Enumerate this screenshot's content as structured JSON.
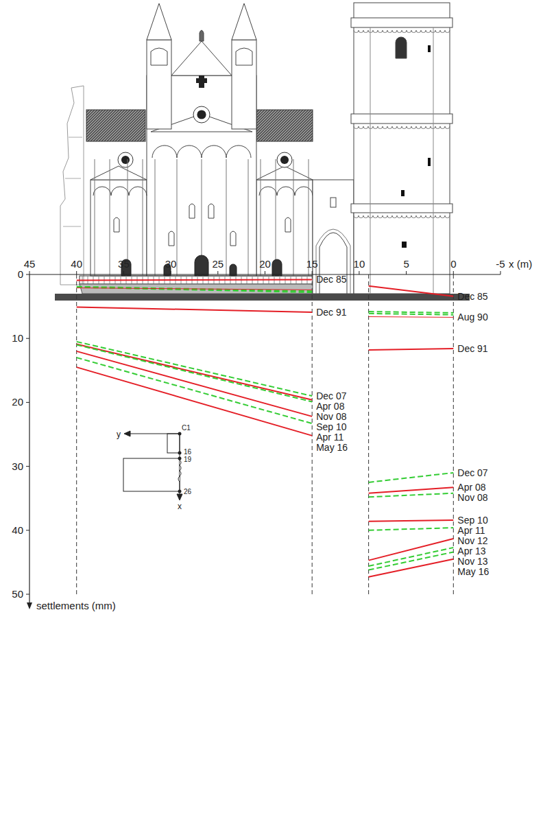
{
  "chart_data": [
    {
      "type": "line",
      "x_label": "x (m)",
      "y_label": "settlements (mm)",
      "xlim": [
        45,
        -5
      ],
      "ylim": [
        0,
        50
      ],
      "xticks": [
        45,
        40,
        35,
        30,
        25,
        20,
        15,
        10,
        5,
        0,
        -5
      ],
      "yticks": [
        0,
        10,
        20,
        30,
        40,
        50
      ],
      "x": [
        40,
        15
      ],
      "series": [
        {
          "name": "Dec 85",
          "color": "#e41e26",
          "line_style": "solid",
          "values": [
            0.9,
            0.8
          ]
        },
        {
          "name": null,
          "color": "#33cc33",
          "line_style": "dashed",
          "values": [
            1.9,
            2.6
          ]
        },
        {
          "name": null,
          "color": "#33cc33",
          "line_style": "dashed",
          "values": [
            2.0,
            2.8
          ]
        },
        {
          "name": null,
          "color": "#e41e26",
          "line_style": "thin",
          "values": [
            2.1,
            2.4
          ]
        },
        {
          "name": "Dec 91",
          "color": "#e41e26",
          "line_style": "solid",
          "values": [
            5.1,
            5.9
          ]
        },
        {
          "name": "Dec 07",
          "color": "#33cc33",
          "line_style": "dashed",
          "values": [
            10.5,
            19.0
          ]
        },
        {
          "name": "Apr 08",
          "color": "#e41e26",
          "line_style": "solid",
          "values": [
            10.9,
            19.6
          ]
        },
        {
          "name": "Nov 08",
          "color": "#33cc33",
          "line_style": "dashed",
          "values": [
            11.0,
            19.9
          ]
        },
        {
          "name": "Sep 10",
          "color": "#e41e26",
          "line_style": "solid",
          "values": [
            12.0,
            22.2
          ]
        },
        {
          "name": "Apr 11",
          "color": "#33cc33",
          "line_style": "dashed",
          "values": [
            13.0,
            23.3
          ]
        },
        {
          "name": "May 16",
          "color": "#e41e26",
          "line_style": "solid",
          "values": [
            14.5,
            25.2
          ]
        }
      ]
    },
    {
      "type": "line",
      "x": [
        9,
        0
      ],
      "series": [
        {
          "name": "Dec 85",
          "color": "#e41e26",
          "line_style": "solid",
          "values": [
            1.8,
            3.4
          ]
        },
        {
          "name": null,
          "color": "#33cc33",
          "line_style": "dashed",
          "values": [
            5.8,
            6.0
          ]
        },
        {
          "name": null,
          "color": "#33cc33",
          "line_style": "dashed",
          "values": [
            6.1,
            6.3
          ]
        },
        {
          "name": "Aug 90",
          "color": "#e41e26",
          "line_style": "thin",
          "values": [
            6.6,
            6.7
          ]
        },
        {
          "name": "Dec 91",
          "color": "#e41e26",
          "line_style": "solid",
          "values": [
            11.8,
            11.6
          ]
        },
        {
          "name": "Dec 07",
          "color": "#33cc33",
          "line_style": "dashed",
          "values": [
            32.5,
            31.0
          ]
        },
        {
          "name": "Apr 08",
          "color": "#e41e26",
          "line_style": "solid",
          "values": [
            34.2,
            33.3
          ]
        },
        {
          "name": "Nov 08",
          "color": "#33cc33",
          "line_style": "dashed",
          "values": [
            34.8,
            34.2
          ]
        },
        {
          "name": "Sep 10",
          "color": "#e41e26",
          "line_style": "solid",
          "values": [
            38.6,
            38.4
          ]
        },
        {
          "name": "Apr 11",
          "color": "#33cc33",
          "line_style": "dashed",
          "values": [
            40.0,
            39.6
          ]
        },
        {
          "name": "Nov 12",
          "color": "#e41e26",
          "line_style": "solid",
          "values": [
            44.7,
            41.3
          ]
        },
        {
          "name": "Apr 13",
          "color": "#33cc33",
          "line_style": "dashed",
          "values": [
            45.6,
            42.7
          ]
        },
        {
          "name": "Nov 13",
          "color": "#33cc33",
          "line_style": "dashed",
          "values": [
            46.2,
            43.4
          ]
        },
        {
          "name": "May 16",
          "color": "#e41e26",
          "line_style": "solid",
          "values": [
            47.3,
            44.5
          ]
        }
      ]
    }
  ],
  "inset": {
    "x_label": "x",
    "y_label": "y",
    "points": [
      "C1",
      "16",
      "19",
      "26"
    ]
  }
}
